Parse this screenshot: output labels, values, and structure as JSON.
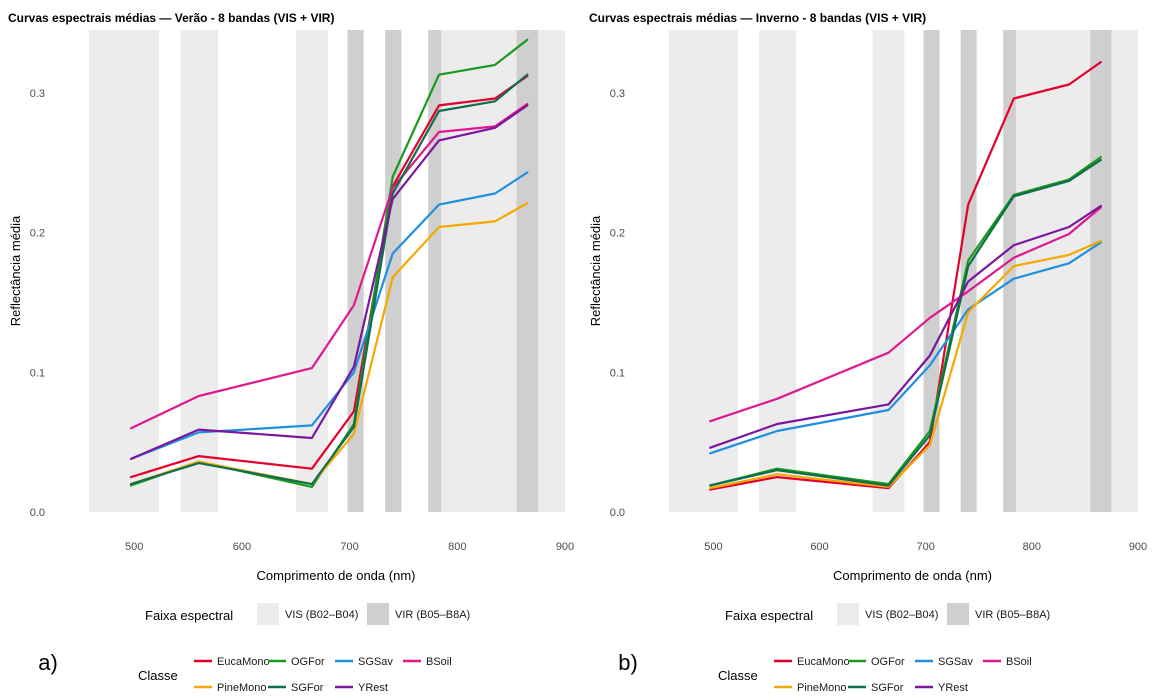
{
  "chart_data": [
    {
      "type": "line",
      "panel_label": "a)",
      "title": "Curvas espectrais médias — Verão - 8 bandas (VIS + VIR)",
      "xlabel": "Comprimento de onda (nm)",
      "ylabel": "Reflectância média",
      "x": [
        497,
        560,
        665,
        704,
        740,
        783,
        835,
        865
      ],
      "xlim": [
        445,
        900
      ],
      "ylim": [
        0,
        0.345
      ],
      "xticks": [
        500,
        600,
        700,
        800,
        900
      ],
      "yticks": [
        0.0,
        0.1,
        0.2,
        0.3
      ],
      "ytick_labels": [
        "0.0",
        "0.1",
        "0.2",
        "0.3"
      ],
      "grid": false,
      "band_shading": [
        {
          "group": "vis",
          "range": [
            458,
            523
          ]
        },
        {
          "group": "vis",
          "range": [
            543,
            578
          ]
        },
        {
          "group": "vis",
          "range": [
            650,
            680
          ]
        },
        {
          "group": "vir",
          "range": [
            698,
            713
          ]
        },
        {
          "group": "vir",
          "range": [
            733,
            748
          ]
        },
        {
          "group": "vir",
          "range": [
            773,
            793
          ]
        },
        {
          "group": "vis",
          "range": [
            785,
            900
          ]
        },
        {
          "group": "vir",
          "range": [
            855,
            875
          ]
        }
      ],
      "series": [
        {
          "name": "EucaMono",
          "color": "#e4002b",
          "values": [
            0.025,
            0.04,
            0.031,
            0.072,
            0.233,
            0.291,
            0.296,
            0.312
          ]
        },
        {
          "name": "OGFor",
          "color": "#1a9a1a",
          "values": [
            0.019,
            0.036,
            0.018,
            0.063,
            0.24,
            0.313,
            0.32,
            0.338
          ]
        },
        {
          "name": "SGSav",
          "color": "#1f8fe0",
          "values": [
            0.038,
            0.057,
            0.062,
            0.1,
            0.185,
            0.22,
            0.228,
            0.243
          ]
        },
        {
          "name": "BSoil",
          "color": "#e0188e",
          "values": [
            0.06,
            0.083,
            0.103,
            0.148,
            0.232,
            0.272,
            0.276,
            0.292
          ]
        },
        {
          "name": "PineMono",
          "color": "#f5a800",
          "values": [
            0.02,
            0.036,
            0.02,
            0.056,
            0.168,
            0.204,
            0.208,
            0.221
          ]
        },
        {
          "name": "SGFor",
          "color": "#0f6e4e",
          "values": [
            0.02,
            0.035,
            0.02,
            0.061,
            0.228,
            0.287,
            0.294,
            0.313
          ]
        },
        {
          "name": "YRest",
          "color": "#7b169e",
          "values": [
            0.038,
            0.059,
            0.053,
            0.104,
            0.224,
            0.266,
            0.275,
            0.291
          ]
        }
      ]
    },
    {
      "type": "line",
      "panel_label": "b)",
      "title": "Curvas espectrais médias — Inverno - 8 bandas (VIS + VIR)",
      "xlabel": "Comprimento de onda (nm)",
      "ylabel": "Reflectância média",
      "x": [
        497,
        560,
        665,
        704,
        740,
        783,
        835,
        865
      ],
      "xlim": [
        445,
        900
      ],
      "ylim": [
        0,
        0.345
      ],
      "xticks": [
        500,
        600,
        700,
        800,
        900
      ],
      "yticks": [
        0.0,
        0.1,
        0.2,
        0.3
      ],
      "ytick_labels": [
        "0.0",
        "0.1",
        "0.2",
        "0.3"
      ],
      "grid": false,
      "band_shading": [
        {
          "group": "vis",
          "range": [
            458,
            523
          ]
        },
        {
          "group": "vis",
          "range": [
            543,
            578
          ]
        },
        {
          "group": "vis",
          "range": [
            650,
            680
          ]
        },
        {
          "group": "vir",
          "range": [
            698,
            713
          ]
        },
        {
          "group": "vir",
          "range": [
            733,
            748
          ]
        },
        {
          "group": "vir",
          "range": [
            773,
            793
          ]
        },
        {
          "group": "vis",
          "range": [
            785,
            900
          ]
        },
        {
          "group": "vir",
          "range": [
            855,
            875
          ]
        }
      ],
      "series": [
        {
          "name": "EucaMono",
          "color": "#e4002b",
          "values": [
            0.016,
            0.025,
            0.017,
            0.05,
            0.22,
            0.296,
            0.306,
            0.322
          ]
        },
        {
          "name": "OGFor",
          "color": "#1a9a1a",
          "values": [
            0.019,
            0.031,
            0.02,
            0.058,
            0.18,
            0.227,
            0.238,
            0.254
          ]
        },
        {
          "name": "SGSav",
          "color": "#1f8fe0",
          "values": [
            0.042,
            0.058,
            0.073,
            0.105,
            0.145,
            0.167,
            0.178,
            0.193
          ]
        },
        {
          "name": "BSoil",
          "color": "#e0188e",
          "values": [
            0.065,
            0.081,
            0.114,
            0.139,
            0.158,
            0.182,
            0.199,
            0.218
          ]
        },
        {
          "name": "PineMono",
          "color": "#f5a800",
          "values": [
            0.017,
            0.027,
            0.018,
            0.048,
            0.143,
            0.176,
            0.184,
            0.194
          ]
        },
        {
          "name": "SGFor",
          "color": "#0f6e4e",
          "values": [
            0.019,
            0.03,
            0.019,
            0.055,
            0.176,
            0.226,
            0.237,
            0.252
          ]
        },
        {
          "name": "YRest",
          "color": "#7b169e",
          "values": [
            0.046,
            0.063,
            0.077,
            0.112,
            0.165,
            0.191,
            0.204,
            0.219
          ]
        }
      ]
    }
  ],
  "legend": {
    "band_title": "Faixa espectral",
    "band_vis_label": "VIS (B02–B04)",
    "band_vir_label": "VIR (B05–B8A)",
    "band_vis_color": "#ececec",
    "band_vir_color": "#cfcfcf",
    "class_title": "Classe",
    "class_rows": [
      [
        "EucaMono",
        "OGFor",
        "SGSav",
        "BSoil"
      ],
      [
        "PineMono",
        "SGFor",
        "YRest"
      ]
    ]
  }
}
